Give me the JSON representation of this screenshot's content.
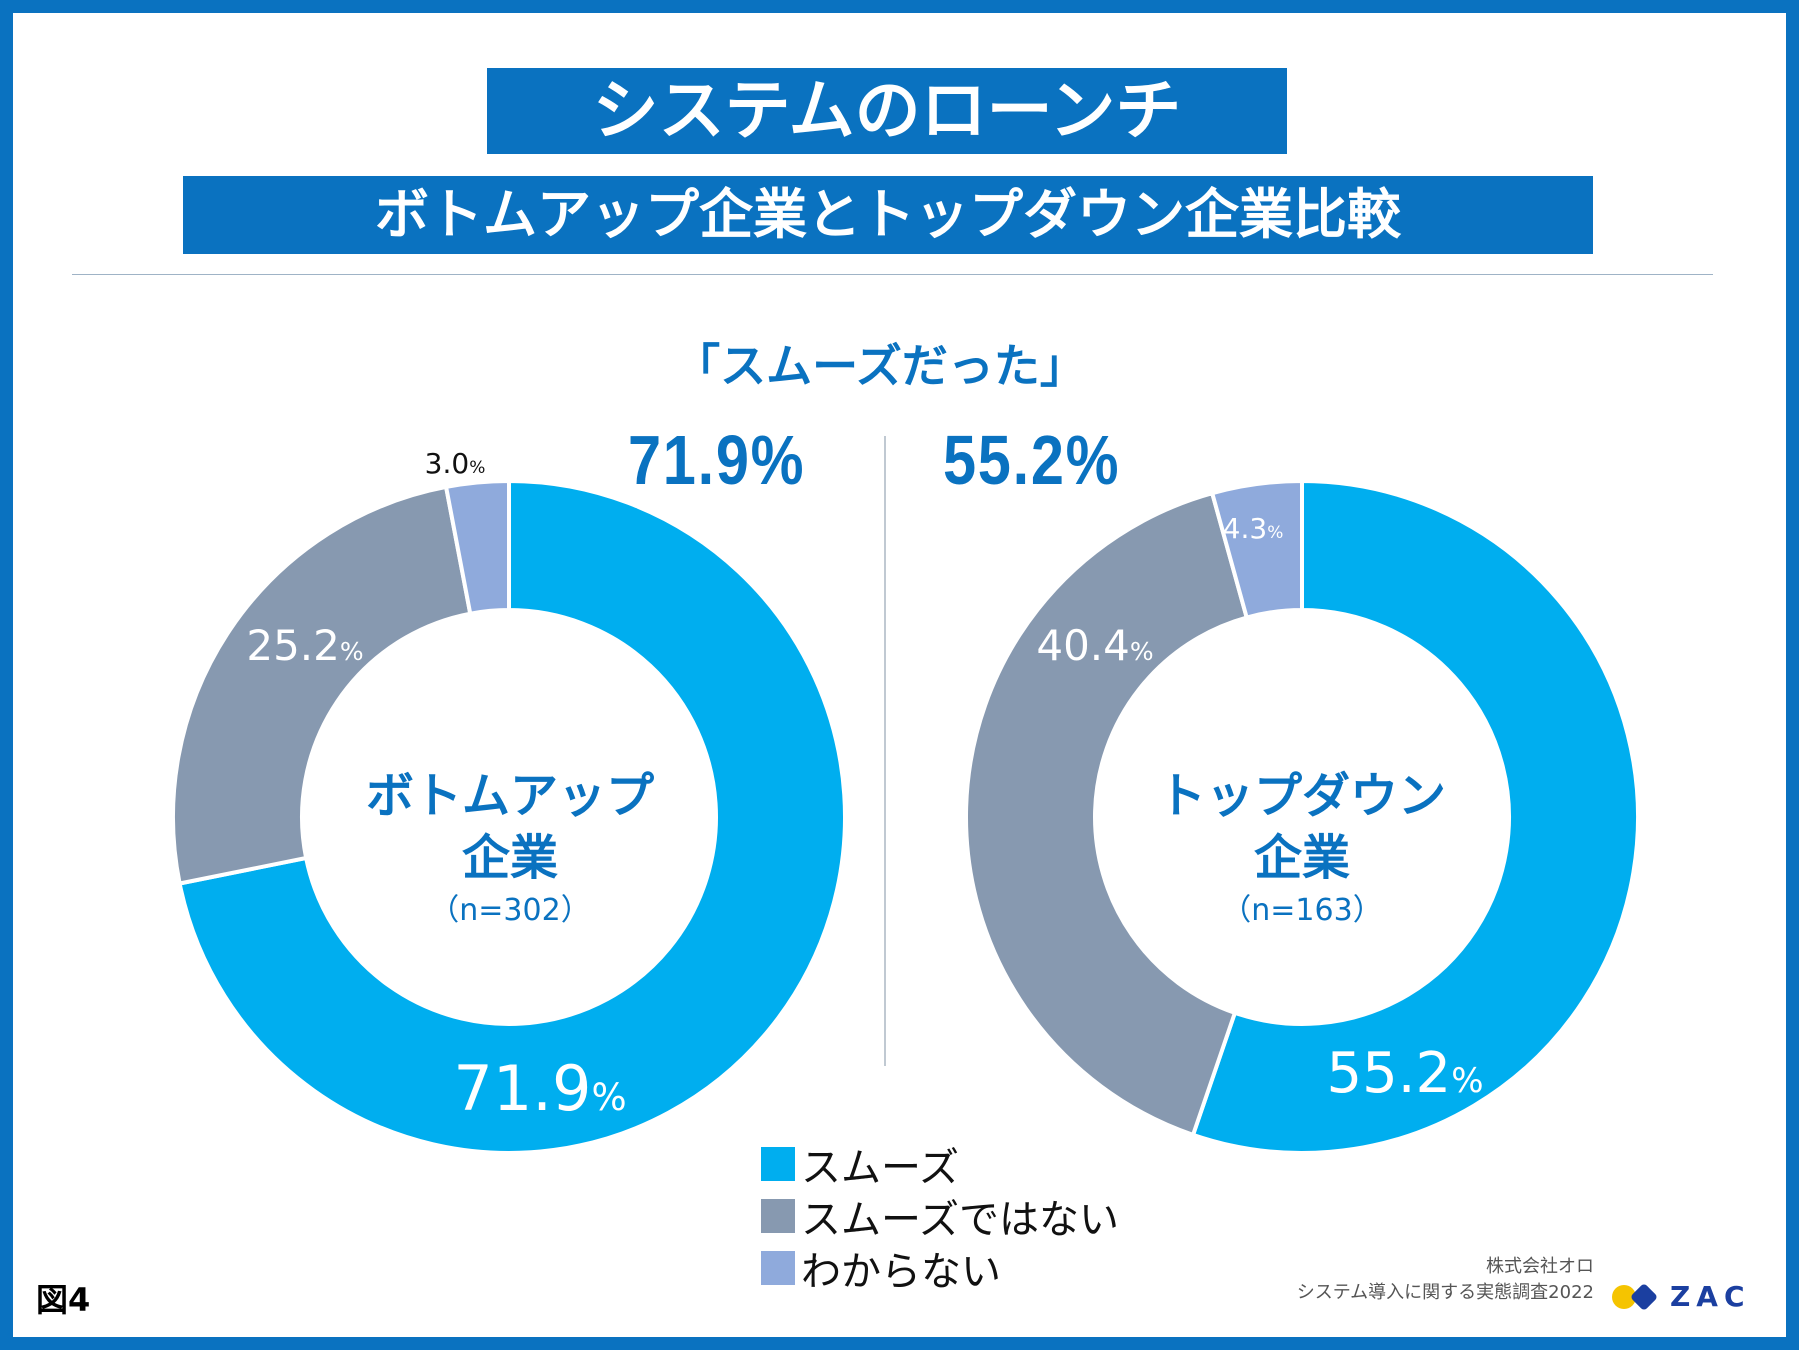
{
  "title": {
    "line1": "システムのローンチ",
    "line2": "ボトムアップ企業とトップダウン企業比較"
  },
  "subtitle": "「スムーズだった」",
  "highlights": {
    "left": "71.9%",
    "right": "55.2%"
  },
  "colors": {
    "smooth": "#00aeef",
    "not_smooth": "#8799b0",
    "unknown": "#8faadc",
    "brand": "#0a72c0"
  },
  "chart_data": [
    {
      "type": "donut",
      "name": "ボトムアップ企業",
      "center": {
        "line1": "ボトムアップ",
        "line2": "企業",
        "line3": "（n=302）"
      },
      "n": 302,
      "slices": [
        {
          "label": "スムーズ",
          "value": 71.9,
          "display": "71.9",
          "unit": "%"
        },
        {
          "label": "スムーズではない",
          "value": 25.2,
          "display": "25.2",
          "unit": "%"
        },
        {
          "label": "わからない",
          "value": 3.0,
          "display": "3.0",
          "unit": "%"
        }
      ]
    },
    {
      "type": "donut",
      "name": "トップダウン企業",
      "center": {
        "line1": "トップダウン",
        "line2": "企業",
        "line3": "（n=163）"
      },
      "n": 163,
      "slices": [
        {
          "label": "スムーズ",
          "value": 55.2,
          "display": "55.2",
          "unit": "%"
        },
        {
          "label": "スムーズではない",
          "value": 40.4,
          "display": "40.4",
          "unit": "%"
        },
        {
          "label": "わからない",
          "value": 4.3,
          "display": "4.3",
          "unit": "%"
        }
      ]
    }
  ],
  "legend": [
    "スムーズ",
    "スムーズではない",
    "わからない"
  ],
  "figure_label": "図4",
  "source": {
    "line1": "株式会社オロ",
    "line2": "システム導入に関する実態調査2022"
  },
  "logo_text": "ZAC"
}
